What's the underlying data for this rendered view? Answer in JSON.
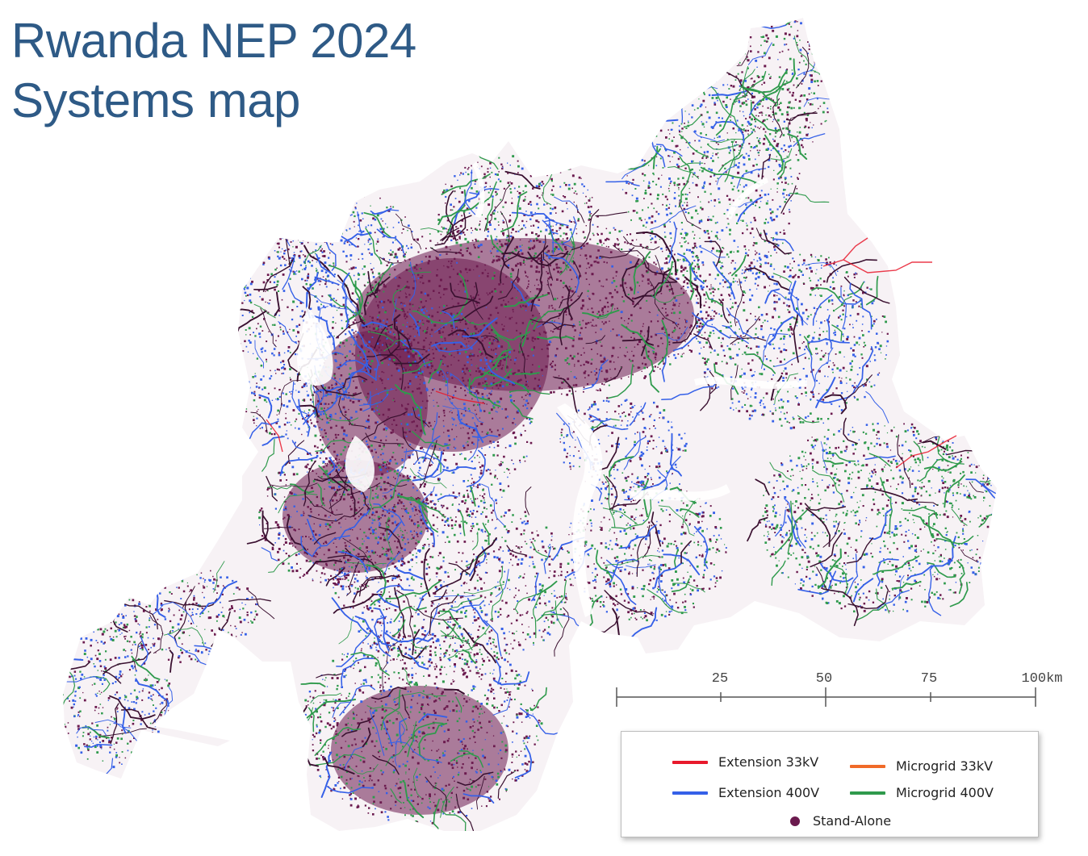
{
  "title": {
    "line1": "Rwanda NEP 2024",
    "line2": "Systems map"
  },
  "scale_bar": {
    "labels": [
      "25",
      "50",
      "75",
      "100km"
    ]
  },
  "legend": {
    "items": [
      {
        "key": "ext33",
        "label": "Extension 33kV",
        "color": "#e8192c",
        "symbol": "line"
      },
      {
        "key": "mg33",
        "label": "Microgrid 33kV",
        "color": "#f06a28",
        "symbol": "line"
      },
      {
        "key": "ext400",
        "label": "Extension 400V",
        "color": "#3560e8",
        "symbol": "line"
      },
      {
        "key": "mg400",
        "label": "Microgrid 400V",
        "color": "#2f9a4c",
        "symbol": "line"
      },
      {
        "key": "sa",
        "label": "Stand-Alone",
        "color": "#6b1a4e",
        "symbol": "dot"
      }
    ]
  },
  "colors": {
    "title": "#2e5a86",
    "stand_alone": "#6b1a4e",
    "extension_400v": "#3560e8",
    "microgrid_400v": "#2f9a4c",
    "extension_33kv": "#e8192c",
    "microgrid_33kv": "#f06a28"
  }
}
